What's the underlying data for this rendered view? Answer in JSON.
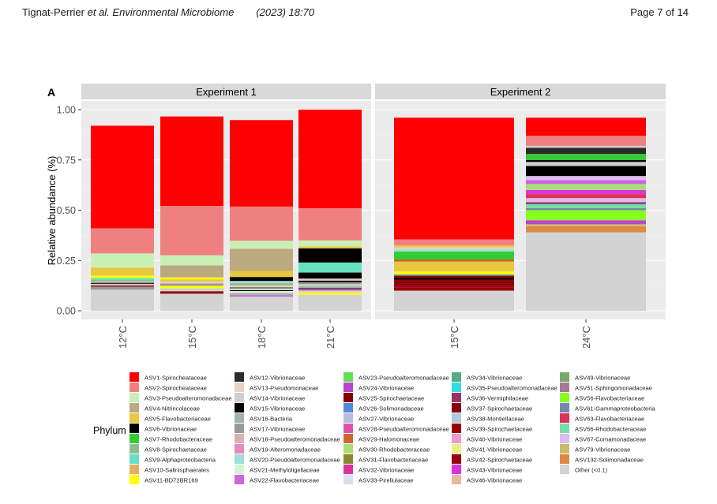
{
  "header": {
    "authors": "Tignat-Perrier",
    "etal": "et al.",
    "journal": "Environmental Microbiome",
    "year_vol": "(2023) 18:70",
    "page": "Page 7 of 14"
  },
  "panel_label": "A",
  "chart_data": {
    "type": "bar",
    "stacked": true,
    "ylabel": "Relative abundance (%)",
    "ylim": [
      0,
      1
    ],
    "yticks": [
      "0.00",
      "0.25",
      "0.50",
      "0.75",
      "1.00"
    ],
    "grid": true,
    "legend_position": "bottom",
    "legend_title": "Phylum",
    "facets": [
      {
        "label": "Experiment 1",
        "categories": [
          "12°C",
          "15°C",
          "18°C",
          "21°C"
        ]
      },
      {
        "label": "Experiment 2",
        "categories": [
          "15°C",
          "24°C"
        ]
      }
    ],
    "taxa": [
      {
        "name": "ASV1-Spirocheataceae",
        "color": "#ff0000"
      },
      {
        "name": "ASV2-Spirocheataceae",
        "color": "#f08080"
      },
      {
        "name": "ASV3-Pseudoalteromonadaceae",
        "color": "#c8f0b4"
      },
      {
        "name": "ASV4-Nitrincolaceae",
        "color": "#bca980"
      },
      {
        "name": "ASV5-Flavobacteriaceae",
        "color": "#e8c840"
      },
      {
        "name": "ASV6-Vibrionaceae",
        "color": "#000000"
      },
      {
        "name": "ASV7-Rhodobacteraceae",
        "color": "#33cc33"
      },
      {
        "name": "ASV8-Spirochaetaceae",
        "color": "#8fbc8f"
      },
      {
        "name": "ASV9-Alphaproteobacteria",
        "color": "#66e0c0"
      },
      {
        "name": "ASV10-Salinisphaerales",
        "color": "#e0b060"
      },
      {
        "name": "ASV11-BD72BR169",
        "color": "#ffff00"
      },
      {
        "name": "ASV12-Vibrionaceae",
        "color": "#2b2b2b"
      },
      {
        "name": "ASV13-Pseudomonaceae",
        "color": "#e6d2c0"
      },
      {
        "name": "ASV14-Vibrionaceae",
        "color": "#cfcfcf"
      },
      {
        "name": "ASV15-Vibrionaceae",
        "color": "#050505"
      },
      {
        "name": "ASV16-Bacteria",
        "color": "#a0b4a0"
      },
      {
        "name": "ASV17-Vibrionaceae",
        "color": "#999999"
      },
      {
        "name": "ASV18-Pseudoalteromonadaceae",
        "color": "#dbb0b0"
      },
      {
        "name": "ASV19-Alteromonadaceae",
        "color": "#e888c0"
      },
      {
        "name": "ASV20-Pseudoalteromonadaceae",
        "color": "#9ee0d8"
      },
      {
        "name": "ASV21-Methyloligellaceae",
        "color": "#d4f4d4"
      },
      {
        "name": "ASV22-Flavobacteriaceae",
        "color": "#cc66dd"
      },
      {
        "name": "ASV23-Pseudoalteromonadaceae",
        "color": "#66dd55"
      },
      {
        "name": "ASV24-Vibrionaceae",
        "color": "#bb44cc"
      },
      {
        "name": "ASV25-Spirochaetaceae",
        "color": "#880000"
      },
      {
        "name": "ASV26-Solimonadaceae",
        "color": "#5588dd"
      },
      {
        "name": "ASV27-Vibrionaceae",
        "color": "#bbbbdd"
      },
      {
        "name": "ASV28-Pseudoalteromonadaceae",
        "color": "#dd55aa"
      },
      {
        "name": "ASV29-Halomonaceae",
        "color": "#cc6633"
      },
      {
        "name": "ASV30-Rhodobacteraceae",
        "color": "#aadd77"
      },
      {
        "name": "ASV31-Flavobacteriaceae",
        "color": "#888833"
      },
      {
        "name": "ASV32-Vibrionaceae",
        "color": "#dd3399"
      },
      {
        "name": "ASV33-Pirellulaceae",
        "color": "#ddddee"
      },
      {
        "name": "ASV34-Vibrionaceae",
        "color": "#55aa88"
      },
      {
        "name": "ASV35-Pseudoalteromonadaceae",
        "color": "#33dddd"
      },
      {
        "name": "ASV36-Vermiphilaceae",
        "color": "#993366"
      },
      {
        "name": "ASV37-Spirochaetaceae",
        "color": "#880011"
      },
      {
        "name": "ASV38-Montiellaceae",
        "color": "#aaccdd"
      },
      {
        "name": "ASV39-Spirochaetaceae",
        "color": "#990000"
      },
      {
        "name": "ASV40-Vibrionaceae",
        "color": "#ee99cc"
      },
      {
        "name": "ASV41-Vibrionaceae",
        "color": "#eeee88"
      },
      {
        "name": "ASV42-Spirochaetaceae",
        "color": "#990011"
      },
      {
        "name": "ASV43-Vibrionaceae",
        "color": "#dd33dd"
      },
      {
        "name": "ASV46-Vibrionaceae",
        "color": "#e8b8a0"
      },
      {
        "name": "ASV49-Vibrionaceae",
        "color": "#77aa66"
      },
      {
        "name": "ASV51-Sphingomonadaceae",
        "color": "#aa7799"
      },
      {
        "name": "ASV56-Flavobacteriaceae",
        "color": "#88ff22"
      },
      {
        "name": "ASV61-Gammaproteobacteria",
        "color": "#7788aa"
      },
      {
        "name": "ASV63-Flavobacteriaceae",
        "color": "#dd3355"
      },
      {
        "name": "ASV66-Rhodobacteraceae",
        "color": "#77ddaa"
      },
      {
        "name": "ASV67-Comamonadaceae",
        "color": "#ddbbee"
      },
      {
        "name": "ASV79-Vibrionaceae",
        "color": "#ccbb66"
      },
      {
        "name": "ASV132-Solimonadaceae",
        "color": "#dd8844"
      },
      {
        "name": "Other (<0.1)",
        "color": "#d3d3d3"
      }
    ],
    "series_stacks": [
      {
        "facet": 0,
        "category": "12°C",
        "segments": [
          [
            "Other (<0.1)",
            0.105
          ],
          [
            "ASV17-Vibrionaceae",
            0.015
          ],
          [
            "ASV25-Spirochaetaceae",
            0.006
          ],
          [
            "ASV14-Vibrionaceae",
            0.008
          ],
          [
            "ASV6-Vibrionaceae",
            0.005
          ],
          [
            "ASV13-Pseudomonaceae",
            0.006
          ],
          [
            "ASV8-Spirochaetaceae",
            0.008
          ],
          [
            "ASV9-Alphaproteobacteria",
            0.01
          ],
          [
            "ASV11-BD72BR169",
            0.012
          ],
          [
            "ASV5-Flavobacteriaceae",
            0.04
          ],
          [
            "ASV3-Pseudoalteromonadaceae",
            0.07
          ],
          [
            "ASV2-Spirocheataceae",
            0.125
          ],
          [
            "ASV1-Spirocheataceae",
            0.51
          ]
        ]
      },
      {
        "facet": 0,
        "category": "15°C",
        "segments": [
          [
            "Other (<0.1)",
            0.085
          ],
          [
            "ASV25-Spirochaetaceae",
            0.012
          ],
          [
            "ASV14-Vibrionaceae",
            0.015
          ],
          [
            "ASV11-BD72BR169",
            0.012
          ],
          [
            "ASV17-Vibrionaceae",
            0.012
          ],
          [
            "ASV13-Pseudomonaceae",
            0.01
          ],
          [
            "ASV5-Flavobacteriaceae",
            0.01
          ],
          [
            "ASV11-BD72BR169",
            0.01
          ],
          [
            "ASV4-Nitrincolaceae",
            0.06
          ],
          [
            "ASV3-Pseudoalteromonadaceae",
            0.05
          ],
          [
            "ASV2-Spirocheataceae",
            0.245
          ],
          [
            "ASV1-Spirocheataceae",
            0.445
          ]
        ]
      },
      {
        "facet": 0,
        "category": "18°C",
        "segments": [
          [
            "Other (<0.1)",
            0.07
          ],
          [
            "ASV22-Flavobacteriaceae",
            0.008
          ],
          [
            "ASV16-Bacteria",
            0.01
          ],
          [
            "ASV21-Methyloligellaceae",
            0.01
          ],
          [
            "ASV6-Vibrionaceae",
            0.004
          ],
          [
            "ASV14-Vibrionaceae",
            0.01
          ],
          [
            "ASV12-Vibrionaceae",
            0.004
          ],
          [
            "ASV13-Pseudomonaceae",
            0.01
          ],
          [
            "ASV8-Spirochaetaceae",
            0.012
          ],
          [
            "ASV20-Pseudoalteromonadaceae",
            0.01
          ],
          [
            "ASV15-Vibrionaceae",
            0.02
          ],
          [
            "ASV5-Flavobacteriaceae",
            0.03
          ],
          [
            "ASV4-Nitrincolaceae",
            0.11
          ],
          [
            "ASV3-Pseudoalteromonadaceae",
            0.04
          ],
          [
            "ASV2-Spirocheataceae",
            0.17
          ],
          [
            "ASV1-Spirocheataceae",
            0.43
          ]
        ]
      },
      {
        "facet": 0,
        "category": "21°C",
        "segments": [
          [
            "Other (<0.1)",
            0.08
          ],
          [
            "ASV11-BD72BR169",
            0.01
          ],
          [
            "ASV13-Pseudomonaceae",
            0.01
          ],
          [
            "ASV22-Flavobacteriaceae",
            0.008
          ],
          [
            "ASV6-Vibrionaceae",
            0.004
          ],
          [
            "ASV16-Bacteria",
            0.01
          ],
          [
            "ASV14-Vibrionaceae",
            0.01
          ],
          [
            "ASV17-Vibrionaceae",
            0.01
          ],
          [
            "ASV6-Vibrionaceae",
            0.008
          ],
          [
            "ASV13-Pseudomonaceae",
            0.01
          ],
          [
            "ASV15-Vibrionaceae",
            0.03
          ],
          [
            "ASV9-Alphaproteobacteria",
            0.05
          ],
          [
            "ASV6-Vibrionaceae",
            0.07
          ],
          [
            "ASV5-Flavobacteriaceae",
            0.01
          ],
          [
            "ASV3-Pseudoalteromonadaceae",
            0.03
          ],
          [
            "ASV2-Spirocheataceae",
            0.16
          ],
          [
            "ASV1-Spirocheataceae",
            0.49
          ]
        ]
      },
      {
        "facet": 1,
        "category": "15°C",
        "segments": [
          [
            "Other (<0.1)",
            0.1
          ],
          [
            "ASV39-Spirochaetaceae",
            0.015
          ],
          [
            "ASV42-Spirochaetaceae",
            0.01
          ],
          [
            "ASV37-Spirochaetaceae",
            0.01
          ],
          [
            "ASV25-Spirochaetaceae",
            0.01
          ],
          [
            "ASV39-Spirochaetaceae",
            0.01
          ],
          [
            "ASV6-Vibrionaceae",
            0.01
          ],
          [
            "ASV37-Spirochaetaceae",
            0.01
          ],
          [
            "ASV8-Spirochaetaceae",
            0.008
          ],
          [
            "ASV11-BD72BR169",
            0.012
          ],
          [
            "ASV5-Flavobacteriaceae",
            0.05
          ],
          [
            "ASV29-Halomonaceae",
            0.01
          ],
          [
            "ASV7-Rhodobacteraceae",
            0.04
          ],
          [
            "ASV20-Pseudoalteromonadaceae",
            0.01
          ],
          [
            "ASV13-Pseudomonaceae",
            0.01
          ],
          [
            "ASV5-Flavobacteriaceae",
            0.01
          ],
          [
            "ASV2-Spirocheataceae",
            0.03
          ],
          [
            "ASV1-Spirocheataceae",
            0.605
          ]
        ]
      },
      {
        "facet": 1,
        "category": "24°C",
        "segments": [
          [
            "Other (<0.1)",
            0.39
          ],
          [
            "ASV132-Solimonadaceae",
            0.03
          ],
          [
            "ASV79-Vibrionaceae",
            0.01
          ],
          [
            "ASV24-Vibrionaceae",
            0.02
          ],
          [
            "ASV56-Flavobacteriaceae",
            0.05
          ],
          [
            "ASV61-Gammaproteobacteria",
            0.01
          ],
          [
            "ASV66-Rhodobacteraceae",
            0.02
          ],
          [
            "ASV36-Vermiphilaceae",
            0.01
          ],
          [
            "ASV67-Comamonadaceae",
            0.02
          ],
          [
            "ASV63-Flavobacteriaceae",
            0.02
          ],
          [
            "ASV43-Vibrionaceae",
            0.02
          ],
          [
            "ASV30-Rhodobacteraceae",
            0.03
          ],
          [
            "ASV22-Flavobacteriaceae",
            0.02
          ],
          [
            "ASV67-Comamonadaceae",
            0.02
          ],
          [
            "ASV6-Vibrionaceae",
            0.05
          ],
          [
            "ASV14-Vibrionaceae",
            0.02
          ],
          [
            "ASV6-Vibrionaceae",
            0.01
          ],
          [
            "ASV7-Rhodobacteraceae",
            0.03
          ],
          [
            "ASV12-Vibrionaceae",
            0.03
          ],
          [
            "ASV14-Vibrionaceae",
            0.01
          ],
          [
            "ASV2-Spirocheataceae",
            0.05
          ],
          [
            "ASV1-Spirocheataceae",
            0.09
          ]
        ]
      }
    ]
  }
}
